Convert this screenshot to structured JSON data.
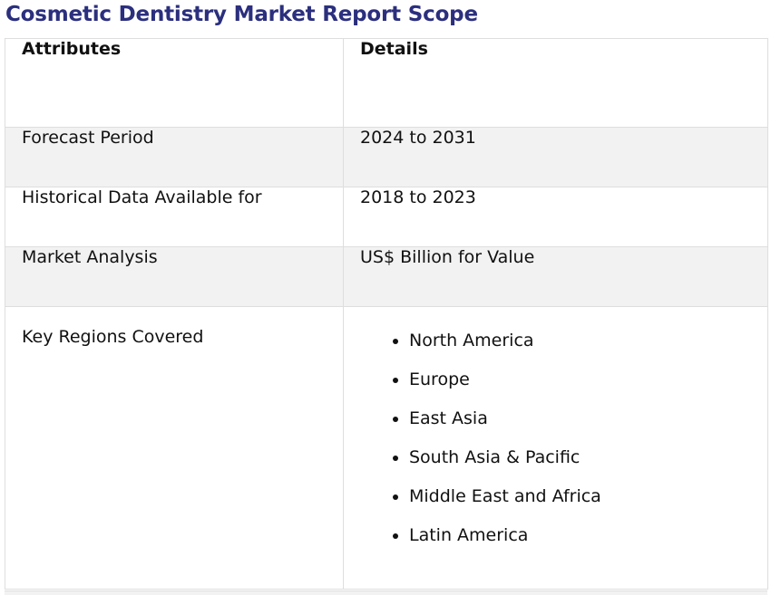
{
  "page": {
    "title": "Cosmetic Dentistry Market Report Scope"
  },
  "table": {
    "headers": [
      "Attributes",
      "Details"
    ],
    "rows": [
      {
        "attribute": "Forecast Period",
        "detail": "2024 to 2031"
      },
      {
        "attribute": "Historical Data Available for",
        "detail": "2018 to 2023"
      },
      {
        "attribute": "Market Analysis",
        "detail": "US$ Billion for Value"
      },
      {
        "attribute": "Key Regions Covered",
        "regions": [
          "North America",
          "Europe",
          "East Asia",
          "South Asia & Pacific",
          "Middle East and Africa",
          "Latin America"
        ]
      }
    ]
  },
  "colors": {
    "title": "#2b2f7d",
    "row_shade": "#f2f2f2",
    "border": "#dedede"
  }
}
